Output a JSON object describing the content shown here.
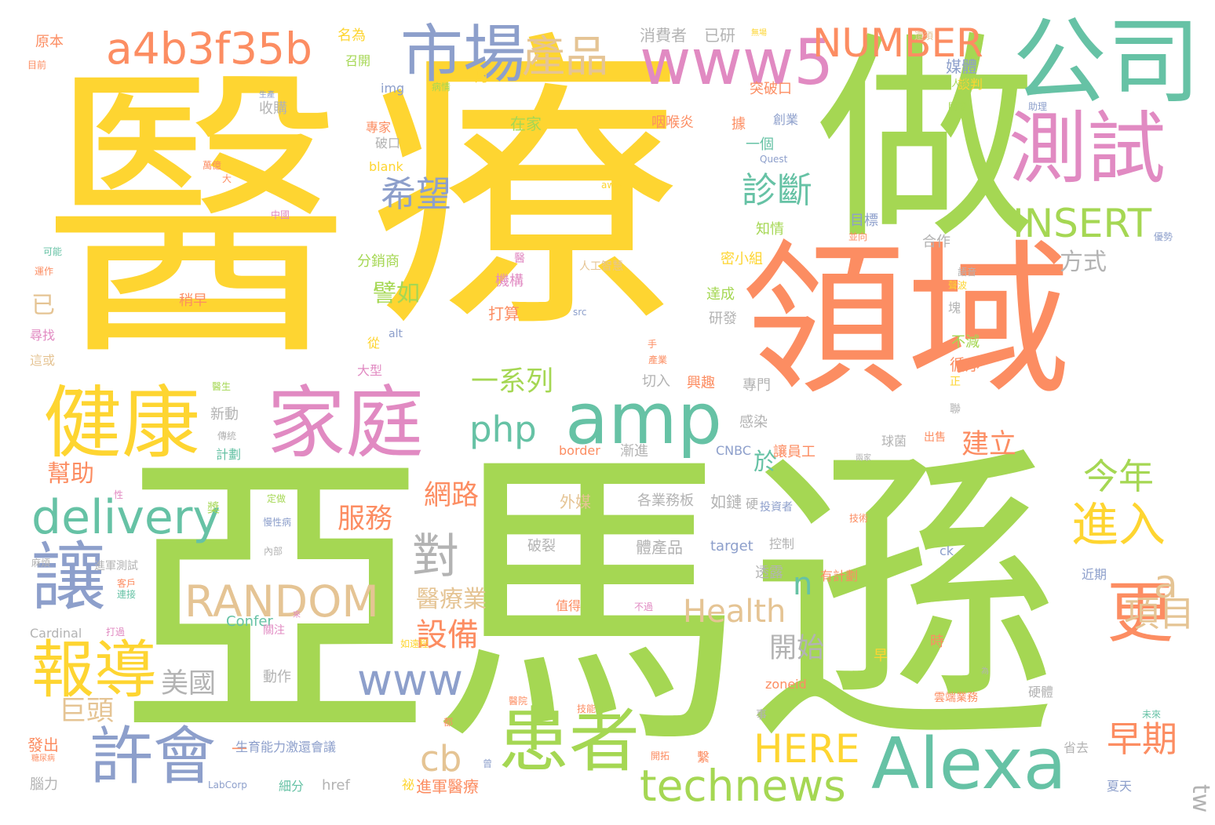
{
  "palette": {
    "yellow": "#fed531",
    "green": "#a5d753",
    "orange": "#fc8d62",
    "pink": "#e18ac2",
    "blue": "#8d9fcb",
    "teal": "#66c2a5",
    "tan": "#e5c494",
    "gray": "#b3b3b3"
  },
  "words": [
    {
      "text": "醫",
      "color": "yellow"
    },
    {
      "text": "療",
      "color": "yellow"
    },
    {
      "text": "做",
      "color": "green"
    },
    {
      "text": "領域",
      "color": "orange"
    },
    {
      "text": "亞馬遜",
      "color": "green"
    },
    {
      "text": "公司",
      "color": "teal"
    },
    {
      "text": "測試",
      "color": "pink"
    },
    {
      "text": "www5",
      "color": "pink"
    },
    {
      "text": "市場",
      "color": "blue"
    },
    {
      "text": "產品",
      "color": "tan"
    },
    {
      "text": "a4b3f35b",
      "color": "orange"
    },
    {
      "text": "NUMBER",
      "color": "orange"
    },
    {
      "text": "家庭",
      "color": "pink"
    },
    {
      "text": "健康",
      "color": "yellow"
    },
    {
      "text": "amp",
      "color": "teal"
    },
    {
      "text": "Alexa",
      "color": "teal"
    },
    {
      "text": "患者",
      "color": "green"
    },
    {
      "text": "更",
      "color": "orange"
    },
    {
      "text": "讓",
      "color": "blue"
    },
    {
      "text": "報導",
      "color": "yellow"
    },
    {
      "text": "許會",
      "color": "blue"
    },
    {
      "text": "technews",
      "color": "green"
    },
    {
      "text": "delivery",
      "color": "teal"
    },
    {
      "text": "php",
      "color": "teal"
    },
    {
      "text": "對",
      "color": "gray"
    },
    {
      "text": "RANDOM",
      "color": "tan"
    },
    {
      "text": "INSERT",
      "color": "green"
    },
    {
      "text": "診斷",
      "color": "teal"
    },
    {
      "text": "希望",
      "color": "blue"
    },
    {
      "text": "進入",
      "color": "yellow"
    },
    {
      "text": "www",
      "color": "blue"
    },
    {
      "text": "一",
      "color": "orange"
    },
    {
      "text": "tw",
      "color": "gray"
    },
    {
      "text": "a",
      "color": "tan"
    },
    {
      "text": "項目",
      "color": "tan"
    },
    {
      "text": "早期",
      "color": "orange"
    },
    {
      "text": "今年",
      "color": "green"
    },
    {
      "text": "HERE",
      "color": "yellow"
    },
    {
      "text": "cb",
      "color": "tan"
    },
    {
      "text": "Health",
      "color": "tan"
    },
    {
      "text": "n",
      "color": "teal"
    },
    {
      "text": "設備",
      "color": "orange"
    },
    {
      "text": "開始",
      "color": "gray"
    },
    {
      "text": "服務",
      "color": "orange"
    },
    {
      "text": "網路",
      "color": "orange"
    },
    {
      "text": "一系列",
      "color": "green"
    },
    {
      "text": "方式",
      "color": "gray"
    },
    {
      "text": "譬如",
      "color": "green"
    },
    {
      "text": "建立",
      "color": "orange"
    },
    {
      "text": "於",
      "color": "teal"
    },
    {
      "text": "幫助",
      "color": "orange"
    },
    {
      "text": "美國",
      "color": "gray"
    },
    {
      "text": "巨頭",
      "color": "tan"
    },
    {
      "text": "醫療業",
      "color": "tan"
    },
    {
      "text": "已",
      "color": "tan"
    },
    {
      "text": "原本",
      "color": "orange"
    },
    {
      "text": "目前",
      "color": "orange"
    },
    {
      "text": "名為",
      "color": "yellow"
    },
    {
      "text": "召開",
      "color": "green"
    },
    {
      "text": "還須",
      "color": "tan"
    },
    {
      "text": "媒體",
      "color": "blue"
    },
    {
      "text": "消費者",
      "color": "gray"
    },
    {
      "text": "已研",
      "color": "gray"
    },
    {
      "text": "無場",
      "color": "yellow"
    },
    {
      "text": "談判",
      "color": "yellow"
    },
    {
      "text": "開發",
      "color": "green"
    },
    {
      "text": "img",
      "color": "blue"
    },
    {
      "text": "病情",
      "color": "green"
    },
    {
      "text": "月",
      "color": "yellow"
    },
    {
      "text": "突破口",
      "color": "orange"
    },
    {
      "text": "在家",
      "color": "green"
    },
    {
      "text": "專家",
      "color": "orange"
    },
    {
      "text": "咽喉炎",
      "color": "orange"
    },
    {
      "text": "破口",
      "color": "gray"
    },
    {
      "text": "blank",
      "color": "yellow"
    },
    {
      "text": "收購",
      "color": "gray"
    },
    {
      "text": "據",
      "color": "orange"
    },
    {
      "text": "創業",
      "color": "blue"
    },
    {
      "text": "一個",
      "color": "teal"
    },
    {
      "text": "Quest",
      "color": "blue"
    },
    {
      "text": "aww",
      "color": "yellow"
    },
    {
      "text": "目標",
      "color": "blue"
    },
    {
      "text": "知情",
      "color": "green"
    },
    {
      "text": "分銷商",
      "color": "green"
    },
    {
      "text": "密小組",
      "color": "yellow"
    },
    {
      "text": "合作",
      "color": "gray"
    },
    {
      "text": "機構",
      "color": "pink"
    },
    {
      "text": "打算",
      "color": "orange"
    },
    {
      "text": "達成",
      "color": "green"
    },
    {
      "text": "研發",
      "color": "gray"
    },
    {
      "text": "src",
      "color": "blue"
    },
    {
      "text": "alt",
      "color": "blue"
    },
    {
      "text": "從",
      "color": "yellow"
    },
    {
      "text": "大型",
      "color": "pink"
    },
    {
      "text": "切入",
      "color": "gray"
    },
    {
      "text": "興趣",
      "color": "orange"
    },
    {
      "text": "專門",
      "color": "gray"
    },
    {
      "text": "循序",
      "color": "orange"
    },
    {
      "text": "不減",
      "color": "green"
    },
    {
      "text": "稍早",
      "color": "orange"
    },
    {
      "text": "尋找",
      "color": "pink"
    },
    {
      "text": "這或",
      "color": "tan"
    },
    {
      "text": "可能",
      "color": "teal"
    },
    {
      "text": "運作",
      "color": "orange"
    },
    {
      "text": "新動",
      "color": "gray"
    },
    {
      "text": "計劃",
      "color": "teal"
    },
    {
      "text": "感染",
      "color": "gray"
    },
    {
      "text": "border",
      "color": "orange"
    },
    {
      "text": "漸進",
      "color": "gray"
    },
    {
      "text": "CNBC",
      "color": "blue"
    },
    {
      "text": "讓員工",
      "color": "orange"
    },
    {
      "text": "球菌",
      "color": "gray"
    },
    {
      "text": "出售",
      "color": "orange"
    },
    {
      "text": "外媒",
      "color": "tan"
    },
    {
      "text": "各業務板",
      "color": "gray"
    },
    {
      "text": "如鏈",
      "color": "gray"
    },
    {
      "text": "硬",
      "color": "gray"
    },
    {
      "text": "投資者",
      "color": "blue"
    },
    {
      "text": "技術",
      "color": "orange"
    },
    {
      "text": "破裂",
      "color": "gray"
    },
    {
      "text": "體產品",
      "color": "gray"
    },
    {
      "text": "target",
      "color": "blue"
    },
    {
      "text": "控制",
      "color": "gray"
    },
    {
      "text": "透露",
      "color": "gray"
    },
    {
      "text": "有計劃",
      "color": "orange"
    },
    {
      "text": "近期",
      "color": "blue"
    },
    {
      "text": "值得",
      "color": "orange"
    },
    {
      "text": "不過",
      "color": "pink"
    },
    {
      "text": "Confer",
      "color": "teal"
    },
    {
      "text": "Cardinal",
      "color": "gray"
    },
    {
      "text": "打過",
      "color": "pink"
    },
    {
      "text": "關注",
      "color": "pink"
    },
    {
      "text": "動作",
      "color": "gray"
    },
    {
      "text": "時",
      "color": "orange"
    },
    {
      "text": "早",
      "color": "yellow"
    },
    {
      "text": "zoneid",
      "color": "orange"
    },
    {
      "text": "事",
      "color": "gray"
    },
    {
      "text": "硬體",
      "color": "gray"
    },
    {
      "text": "雲端業務",
      "color": "orange"
    },
    {
      "text": "技能",
      "color": "orange"
    },
    {
      "text": "醫院",
      "color": "orange"
    },
    {
      "text": "都",
      "color": "orange"
    },
    {
      "text": "發出",
      "color": "orange"
    },
    {
      "text": "糖尿病",
      "color": "orange"
    },
    {
      "text": "生育能力激還會議",
      "color": "blue"
    },
    {
      "text": "開拓",
      "color": "orange"
    },
    {
      "text": "繫",
      "color": "orange"
    },
    {
      "text": "省去",
      "color": "gray"
    },
    {
      "text": "夏天",
      "color": "blue"
    },
    {
      "text": "腦力",
      "color": "gray"
    },
    {
      "text": "LabCorp",
      "color": "blue"
    },
    {
      "text": "細分",
      "color": "teal"
    },
    {
      "text": "href",
      "color": "gray"
    },
    {
      "text": "祕",
      "color": "yellow"
    },
    {
      "text": "進軍醫療",
      "color": "orange"
    },
    {
      "text": "進軍測試",
      "color": "gray"
    },
    {
      "text": "麻煩",
      "color": "gray"
    },
    {
      "text": "內部",
      "color": "gray"
    },
    {
      "text": "定做",
      "color": "green"
    },
    {
      "text": "慢性病",
      "color": "blue"
    },
    {
      "text": "獎",
      "color": "green"
    },
    {
      "text": "性",
      "color": "pink"
    },
    {
      "text": "醫生",
      "color": "green"
    },
    {
      "text": "傳統",
      "color": "gray"
    },
    {
      "text": "人工智慧",
      "color": "tan"
    },
    {
      "text": "人士",
      "color": "green"
    },
    {
      "text": "優勢",
      "color": "blue"
    },
    {
      "text": "助理",
      "color": "blue"
    },
    {
      "text": "語音",
      "color": "gray"
    },
    {
      "text": "聲波",
      "color": "yellow"
    },
    {
      "text": "塊",
      "color": "gray"
    },
    {
      "text": "正",
      "color": "yellow"
    },
    {
      "text": "聯",
      "color": "gray"
    },
    {
      "text": "醫",
      "color": "pink"
    },
    {
      "text": "萬億",
      "color": "orange"
    },
    {
      "text": "大",
      "color": "orange"
    },
    {
      "text": "中國",
      "color": "pink"
    },
    {
      "text": "生產",
      "color": "blue"
    },
    {
      "text": "產業",
      "color": "orange"
    },
    {
      "text": "手",
      "color": "orange"
    },
    {
      "text": "兩家",
      "color": "gray"
    },
    {
      "text": "連接",
      "color": "teal"
    },
    {
      "text": "客戶",
      "color": "orange"
    },
    {
      "text": "來",
      "color": "pink"
    },
    {
      "text": "ck",
      "color": "blue"
    },
    {
      "text": "未來",
      "color": "teal"
    },
    {
      "text": "為",
      "color": "gray"
    },
    {
      "text": "曾",
      "color": "blue"
    },
    {
      "text": "如遠程",
      "color": "yellow"
    },
    {
      "text": "並向",
      "color": "orange"
    }
  ]
}
